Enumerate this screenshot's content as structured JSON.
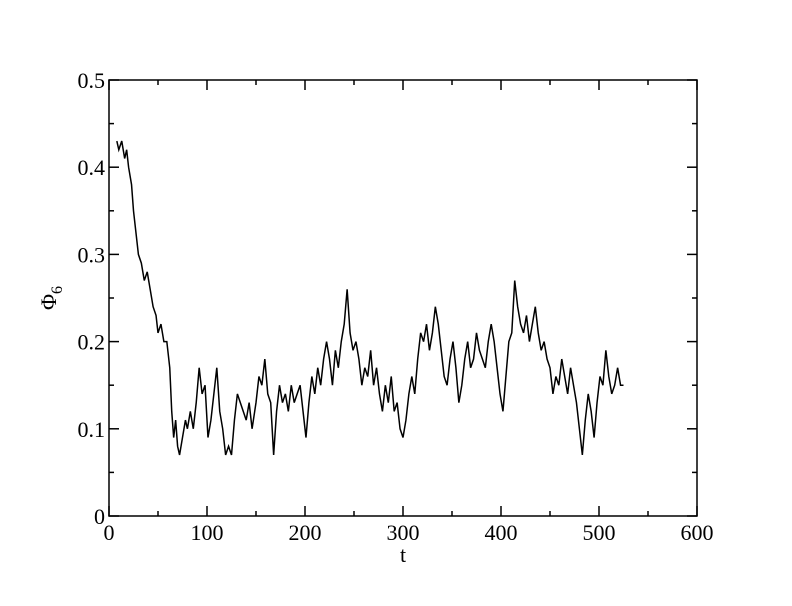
{
  "chart_data": {
    "type": "line",
    "xlabel": "t",
    "ylabel": "Φ",
    "ylabel_subscript": "6",
    "xlim": [
      0,
      600
    ],
    "xticks": [
      0,
      100,
      200,
      300,
      400,
      500,
      600
    ],
    "xminorticks": [
      50,
      150,
      250,
      350,
      450,
      550
    ],
    "ylim": [
      0,
      0.5
    ],
    "yticks": [
      0,
      0.1,
      0.2,
      0.3,
      0.4,
      0.5
    ],
    "yminorticks": [
      0.05,
      0.15,
      0.25,
      0.35,
      0.45
    ],
    "series": [
      {
        "color": "#000000",
        "x": [
          8,
          10,
          13,
          16,
          18,
          20,
          23,
          25,
          28,
          30,
          33,
          36,
          39,
          42,
          45,
          48,
          50,
          53,
          56,
          59,
          62,
          64,
          66,
          68,
          70,
          72,
          75,
          78,
          80,
          83,
          86,
          89,
          92,
          95,
          98,
          101,
          104,
          107,
          110,
          113,
          116,
          119,
          122,
          125,
          128,
          131,
          134,
          137,
          140,
          143,
          146,
          150,
          153,
          156,
          159,
          162,
          165,
          168,
          171,
          174,
          177,
          180,
          183,
          186,
          189,
          192,
          195,
          198,
          201,
          204,
          207,
          210,
          213,
          216,
          219,
          222,
          225,
          228,
          231,
          234,
          237,
          240,
          243,
          246,
          249,
          252,
          255,
          258,
          261,
          264,
          267,
          270,
          273,
          276,
          279,
          282,
          285,
          288,
          291,
          294,
          297,
          300,
          303,
          306,
          309,
          312,
          315,
          318,
          321,
          324,
          327,
          330,
          333,
          336,
          339,
          342,
          345,
          348,
          351,
          354,
          357,
          360,
          363,
          366,
          369,
          372,
          375,
          378,
          381,
          384,
          387,
          390,
          393,
          396,
          399,
          402,
          405,
          408,
          411,
          414,
          417,
          420,
          423,
          426,
          429,
          432,
          435,
          438,
          441,
          444,
          447,
          450,
          453,
          456,
          459,
          462,
          465,
          468,
          471,
          474,
          477,
          480,
          483,
          486,
          489,
          492,
          495,
          498,
          501,
          504,
          507,
          510,
          513,
          516,
          519,
          522,
          525
        ],
        "values": [
          0.43,
          0.42,
          0.43,
          0.41,
          0.42,
          0.4,
          0.38,
          0.35,
          0.32,
          0.3,
          0.29,
          0.27,
          0.28,
          0.26,
          0.24,
          0.23,
          0.21,
          0.22,
          0.2,
          0.2,
          0.17,
          0.12,
          0.09,
          0.11,
          0.08,
          0.07,
          0.09,
          0.11,
          0.1,
          0.12,
          0.1,
          0.13,
          0.17,
          0.14,
          0.15,
          0.09,
          0.11,
          0.14,
          0.17,
          0.12,
          0.1,
          0.07,
          0.08,
          0.07,
          0.11,
          0.14,
          0.13,
          0.12,
          0.11,
          0.13,
          0.1,
          0.13,
          0.16,
          0.15,
          0.18,
          0.14,
          0.13,
          0.07,
          0.12,
          0.15,
          0.13,
          0.14,
          0.12,
          0.15,
          0.13,
          0.14,
          0.15,
          0.12,
          0.09,
          0.13,
          0.16,
          0.14,
          0.17,
          0.15,
          0.18,
          0.2,
          0.18,
          0.15,
          0.19,
          0.17,
          0.2,
          0.22,
          0.26,
          0.21,
          0.19,
          0.2,
          0.18,
          0.15,
          0.17,
          0.16,
          0.19,
          0.15,
          0.17,
          0.14,
          0.12,
          0.15,
          0.13,
          0.16,
          0.12,
          0.13,
          0.1,
          0.09,
          0.11,
          0.14,
          0.16,
          0.14,
          0.18,
          0.21,
          0.2,
          0.22,
          0.19,
          0.21,
          0.24,
          0.22,
          0.19,
          0.16,
          0.15,
          0.18,
          0.2,
          0.17,
          0.13,
          0.15,
          0.18,
          0.2,
          0.17,
          0.18,
          0.21,
          0.19,
          0.18,
          0.17,
          0.2,
          0.22,
          0.2,
          0.17,
          0.14,
          0.12,
          0.16,
          0.2,
          0.21,
          0.27,
          0.24,
          0.22,
          0.21,
          0.23,
          0.2,
          0.22,
          0.24,
          0.21,
          0.19,
          0.2,
          0.18,
          0.17,
          0.14,
          0.16,
          0.15,
          0.18,
          0.16,
          0.14,
          0.17,
          0.15,
          0.13,
          0.1,
          0.07,
          0.11,
          0.14,
          0.12,
          0.09,
          0.13,
          0.16,
          0.15,
          0.19,
          0.16,
          0.14,
          0.15,
          0.17,
          0.15,
          0.15
        ]
      }
    ]
  }
}
